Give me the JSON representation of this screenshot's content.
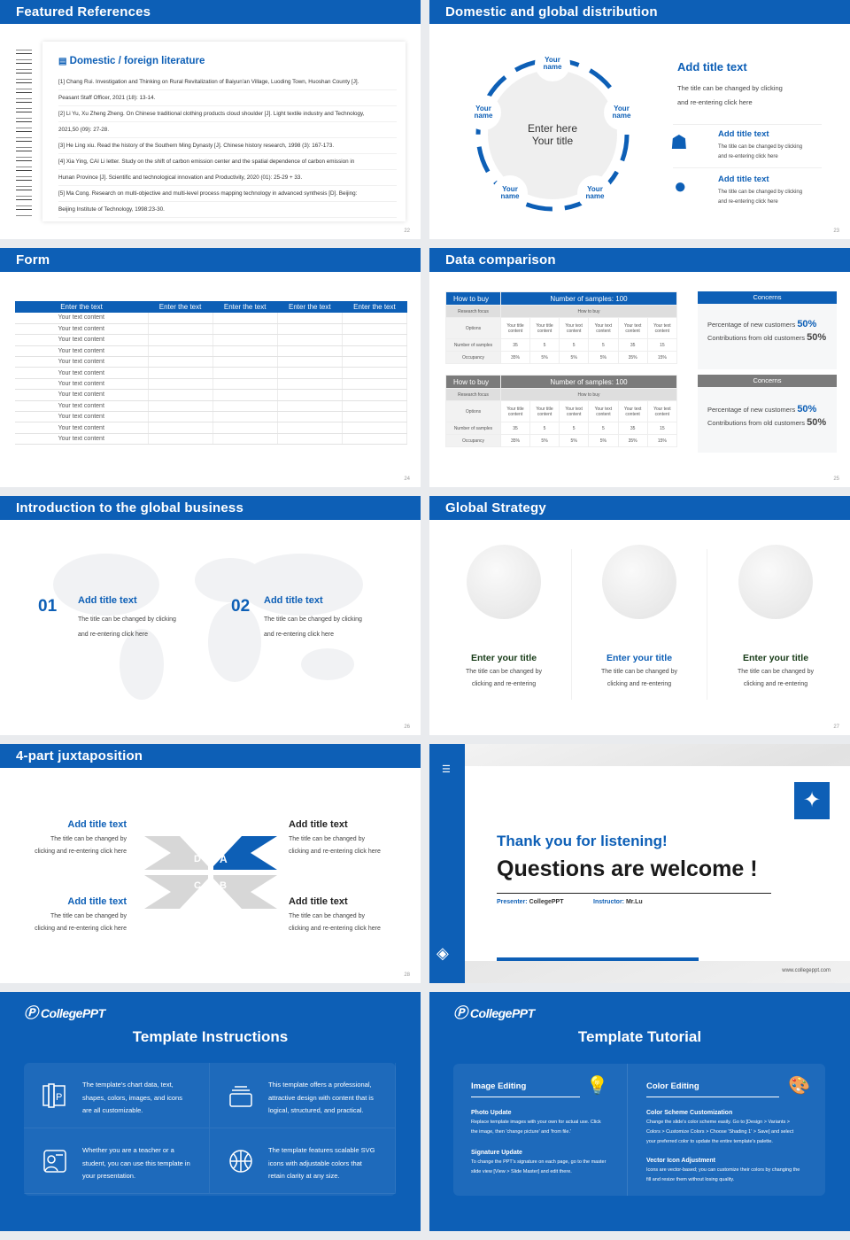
{
  "colors": {
    "brand": "#0d5fb6",
    "grey_header": "#7b7b7b"
  },
  "slides": [
    {
      "page": "22",
      "title": "Featured References",
      "heading": "Domestic / foreign literature",
      "icon": "book-icon",
      "references": [
        "[1] Chang Rui. Investigation and Thinking on Rural Revitalization of Baiyun'an Village, Luoding Town, Huoshan County [J].",
        "Peasant Staff Officer, 2021 (18): 13-14.",
        "[2] Li Yu, Xu Zheng Zheng. On Chinese traditional clothing products cloud shoulder [J]. Light textile industry and Technology,",
        "2021,50 (09): 27-28.",
        "[3] He Ling xiu. Read the history of the Southern Ming Dynasty [J]. Chinese history research, 1998 (3): 167-173.",
        "[4] Xia Ying, CAI Li letter. Study on the shift of carbon emission center and the spatial dependence of carbon emission in",
        "Hunan Province [J]. Scientific and technological innovation and Productivity, 2020 (01): 25-29 + 33.",
        "[5] Ma Cong. Research on multi-objective and multi-level process mapping technology in advanced synthesis [D]. Beijing:",
        "Beijing Institute of Technology, 1998:23-30."
      ]
    },
    {
      "page": "23",
      "title": "Domestic and global distribution",
      "center": [
        "Enter here",
        "Your title"
      ],
      "node_label": [
        "Your",
        "name"
      ],
      "main_title": "Add title text",
      "main_desc": [
        "The title can be changed by clicking",
        "and re-entering click here"
      ],
      "items": [
        {
          "icon": "china-map-icon",
          "title": "Add title text",
          "desc": [
            "The title can be changed by clicking",
            "and re-entering click here"
          ]
        },
        {
          "icon": "globe-icon",
          "title": "Add title text",
          "desc": [
            "The title can be changed by clicking",
            "and re-entering click here"
          ]
        }
      ]
    },
    {
      "page": "24",
      "title": "Form",
      "columns": [
        "Enter the text",
        "Enter the text",
        "Enter the text",
        "Enter the text",
        "Enter the text"
      ],
      "row_text": "Your text content",
      "row_count": 12
    },
    {
      "page": "25",
      "title": "Data comparison",
      "tables": [
        {
          "header": [
            "How to buy",
            "Number of samples: 100"
          ],
          "research_focus": [
            "Research focus",
            "How to buy"
          ],
          "options_label": "Options",
          "options": [
            "Your title content",
            "Your title content",
            "Your text content",
            "Your text content",
            "Your text content",
            "Your text content"
          ],
          "samples_label": "Number of samples",
          "samples": [
            "35",
            "5",
            "5",
            "5",
            "35",
            "15"
          ],
          "occupancy_label": "Occupancy",
          "occupancy": [
            "35%",
            "5%",
            "5%",
            "5%",
            "35%",
            "15%"
          ]
        }
      ],
      "concerns": {
        "title": "Concerns",
        "new_label": "Percentage of new customers",
        "new_value": "50%",
        "old_label": "Contributions from old customers",
        "old_value": "50%"
      }
    },
    {
      "page": "26",
      "title": "Introduction to the global business",
      "items": [
        {
          "num": "01",
          "title": "Add title text",
          "desc": [
            "The title can be changed by clicking",
            "and re-entering click here"
          ]
        },
        {
          "num": "02",
          "title": "Add title text",
          "desc": [
            "The title can be changed by clicking",
            "and re-entering click here"
          ]
        }
      ]
    },
    {
      "page": "27",
      "title": "Global Strategy",
      "items": [
        {
          "title": "Enter your title",
          "desc": [
            "The title can be changed by",
            "clicking and re-entering"
          ]
        },
        {
          "title": "Enter your title",
          "desc": [
            "The title can be changed by",
            "clicking and re-entering"
          ]
        },
        {
          "title": "Enter your title",
          "desc": [
            "The title can be changed by",
            "clicking and re-entering"
          ]
        }
      ]
    },
    {
      "page": "28",
      "title": "4-part juxtaposition",
      "letters": [
        "D",
        "A",
        "C",
        "B"
      ],
      "items": [
        {
          "title": "Add title text",
          "desc": [
            "The title can be changed by",
            "clicking and re-entering click here"
          ]
        },
        {
          "title": "Add title text",
          "desc": [
            "The title can be changed by",
            "clicking and re-entering click here"
          ]
        },
        {
          "title": "Add title text",
          "desc": [
            "The title can be changed by",
            "clicking and re-entering click here"
          ]
        },
        {
          "title": "Add title text",
          "desc": [
            "The title can be changed by",
            "clicking and re-entering click here"
          ]
        }
      ]
    },
    {
      "thanks": "Thank you for listening!",
      "questions": "Questions are welcome !",
      "presenter_label": "Presenter:",
      "presenter": "CollegePPT",
      "instructor_label": "Instructor:",
      "instructor": "Mr.Lu",
      "website": "www.collegeppt.com",
      "icons": [
        "menu-icon",
        "layers-icon",
        "maple-leaf-icon"
      ]
    },
    {
      "logo": "CollegePPT",
      "title": "Template Instructions",
      "cells": [
        {
          "icon": "ppt-pages-icon",
          "text": [
            "The template's chart data, text,",
            "shapes, colors, images, and icons",
            "are all customizable."
          ]
        },
        {
          "icon": "stack-icon",
          "text": [
            "This template offers a professional,",
            "attractive design with content that is",
            "logical, structured, and practical."
          ]
        },
        {
          "icon": "user-card-icon",
          "text": [
            "Whether you are a teacher or a",
            "student, you can use this template in",
            "your presentation."
          ]
        },
        {
          "icon": "basketball-icon",
          "text": [
            "The template features scalable SVG",
            "icons with adjustable colors that",
            "retain clarity at any size."
          ]
        }
      ]
    },
    {
      "logo": "CollegePPT",
      "title": "Template Tutorial",
      "sections": [
        {
          "heading": "Image Editing",
          "icon": "lightbulb-icon",
          "parts": [
            {
              "title": "Photo Update",
              "text": [
                "Replace template images with your own for actual use. Click",
                "the image, then 'change picture' and 'from file.'"
              ]
            },
            {
              "title": "Signature Update",
              "text": [
                "To change the PPT's signature on each page, go to the master",
                "slide view [View > Slide Master] and edit there."
              ]
            }
          ]
        },
        {
          "heading": "Color Editing",
          "icon": "palette-icon",
          "parts": [
            {
              "title": "Color Scheme Customization",
              "text": [
                "Change the slide's color scheme easily. Go to [Design > Variants >",
                "Colors > Customize Colors > Choose 'Shading 1' > Save] and select",
                "your preferred color to update the entire template's palette."
              ]
            },
            {
              "title": "Vector Icon Adjustment",
              "text": [
                "Icons are vector-based; you can customize their colors by changing the",
                "fill and resize them without losing quality."
              ]
            }
          ]
        }
      ]
    }
  ]
}
